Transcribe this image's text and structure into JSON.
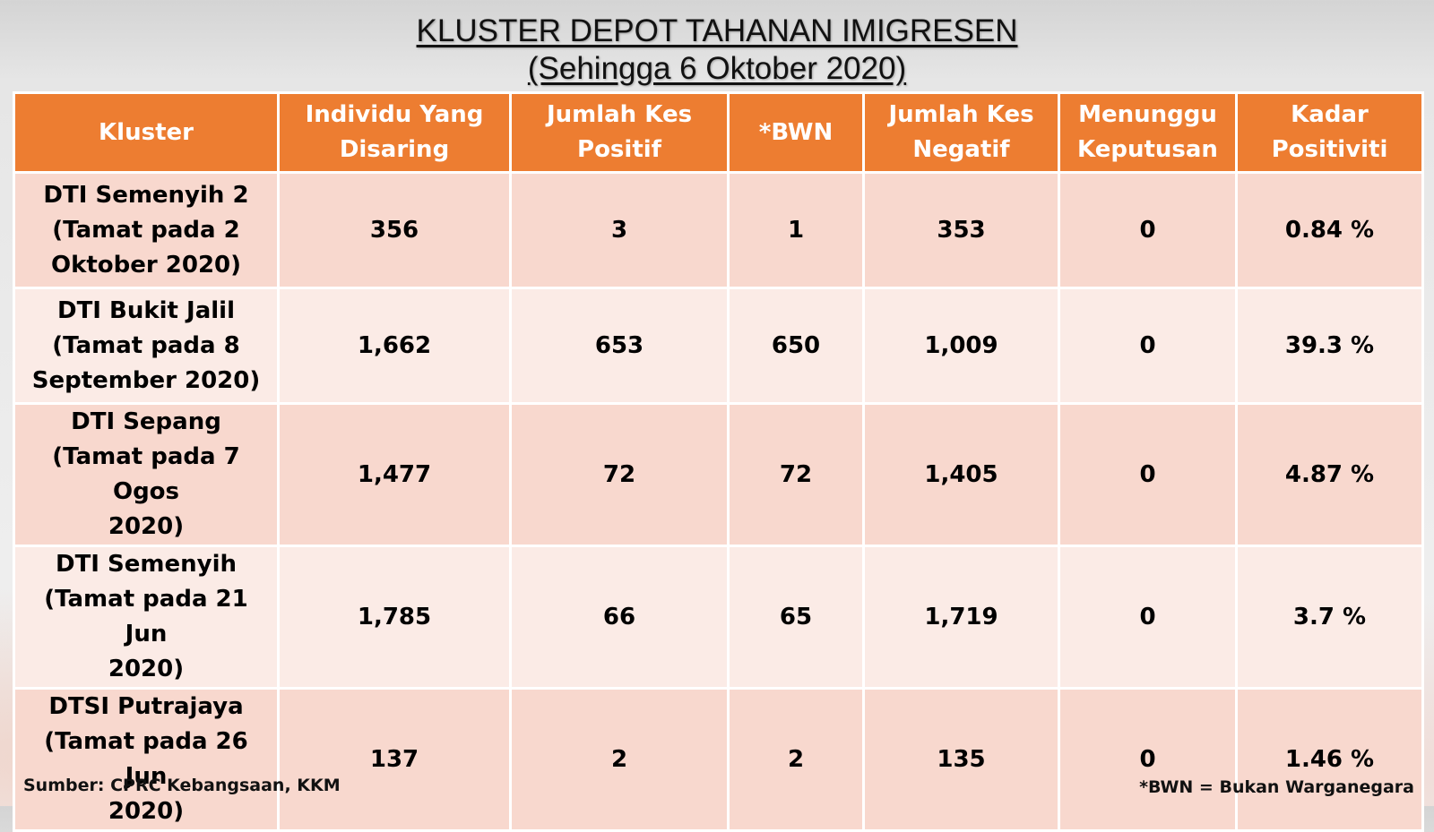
{
  "title": {
    "line1": "KLUSTER DEPOT TAHANAN IMIGRESEN",
    "line2": "(Sehingga 6 Oktober 2020)"
  },
  "table": {
    "headers": [
      {
        "lines": [
          "Kluster"
        ]
      },
      {
        "lines": [
          "Individu Yang",
          "Disaring"
        ]
      },
      {
        "lines": [
          "Jumlah Kes",
          "Positif"
        ]
      },
      {
        "lines": [
          "*BWN"
        ]
      },
      {
        "lines": [
          "Jumlah Kes",
          "Negatif"
        ]
      },
      {
        "lines": [
          "Menunggu",
          "Keputusan"
        ]
      },
      {
        "lines": [
          "Kadar",
          "Positiviti"
        ]
      }
    ],
    "rows": [
      {
        "kluster_lines": [
          "DTI Semenyih 2",
          "(Tamat pada 2",
          "Oktober 2020)"
        ],
        "disaring": "356",
        "positif": "3",
        "bwn": "1",
        "negatif": "353",
        "menunggu": "0",
        "kadar": "0.84 %"
      },
      {
        "kluster_lines": [
          "DTI Bukit Jalil",
          "(Tamat pada 8",
          "September 2020)"
        ],
        "disaring": "1,662",
        "positif": "653",
        "bwn": "650",
        "negatif": "1,009",
        "menunggu": "0",
        "kadar": "39.3 %"
      },
      {
        "kluster_lines": [
          "DTI Sepang",
          "(Tamat pada 7 Ogos",
          "2020)"
        ],
        "disaring": "1,477",
        "positif": "72",
        "bwn": "72",
        "negatif": "1,405",
        "menunggu": "0",
        "kadar": "4.87 %"
      },
      {
        "kluster_lines": [
          "DTI Semenyih",
          "(Tamat pada 21 Jun",
          "2020)"
        ],
        "disaring": "1,785",
        "positif": "66",
        "bwn": "65",
        "negatif": "1,719",
        "menunggu": "0",
        "kadar": "3.7 %"
      },
      {
        "kluster_lines": [
          "DTSI Putrajaya",
          "(Tamat pada 26 Jun",
          "2020)"
        ],
        "disaring": "137",
        "positif": "2",
        "bwn": "2",
        "negatif": "135",
        "menunggu": "0",
        "kadar": "1.46 %"
      }
    ]
  },
  "footer": {
    "source": "Sumber: CPRC Kebangsaan, KKM",
    "note": "*BWN = Bukan Warganegara"
  },
  "colors": {
    "header_bg": "#ed7d31",
    "row_odd_bg": "#f8d8ce",
    "row_even_bg": "#fbebe6"
  }
}
